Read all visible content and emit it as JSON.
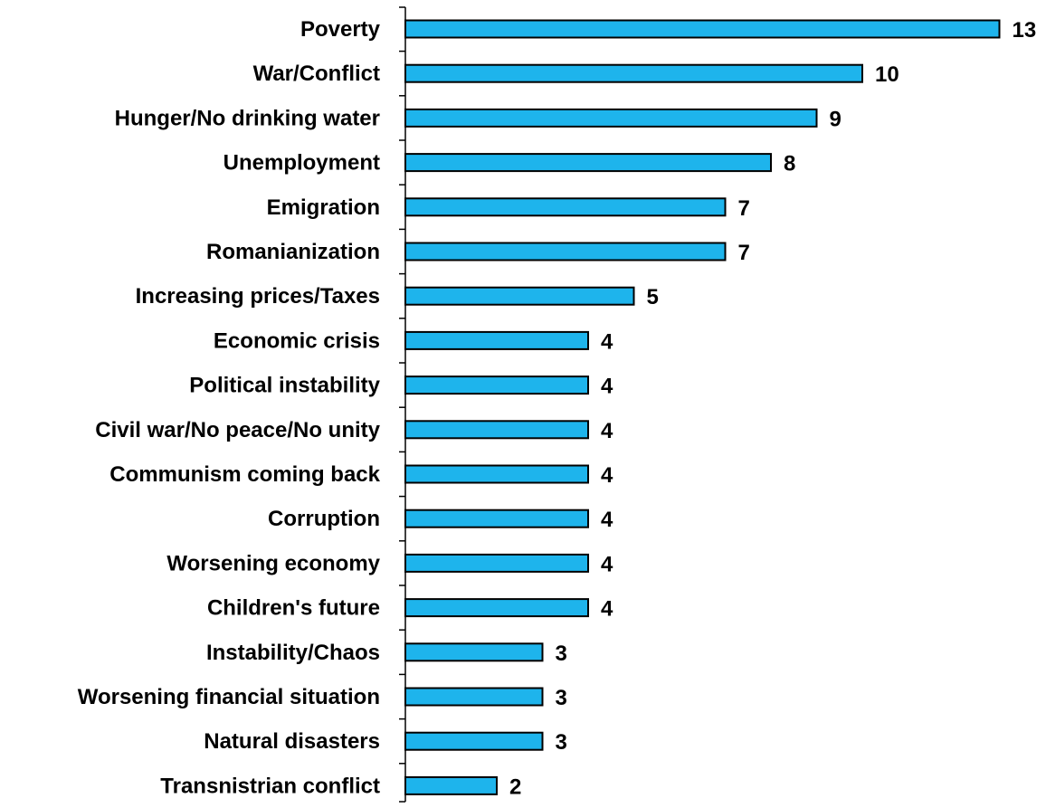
{
  "chart_data": {
    "type": "bar",
    "orientation": "horizontal",
    "categories": [
      "Poverty",
      "War/Conflict",
      "Hunger/No drinking water",
      "Unemployment",
      "Emigration",
      "Romanianization",
      "Increasing prices/Taxes",
      "Economic crisis",
      "Political instability",
      "Civil war/No peace/No unity",
      "Communism coming back",
      "Corruption",
      "Worsening economy",
      "Children's future",
      "Instability/Chaos",
      "Worsening financial situation",
      "Natural disasters",
      "Transnistrian conflict"
    ],
    "values": [
      13,
      10,
      9,
      8,
      7,
      7,
      5,
      4,
      4,
      4,
      4,
      4,
      4,
      4,
      3,
      3,
      3,
      2
    ],
    "title": "",
    "xlabel": "",
    "ylabel": "",
    "xlim": [
      0,
      13
    ],
    "grid": false,
    "data_labels": true,
    "colors": {
      "bar_fill": "#1eb4ec",
      "bar_stroke": "#000000",
      "text": "#000000",
      "background": "#ffffff"
    }
  }
}
